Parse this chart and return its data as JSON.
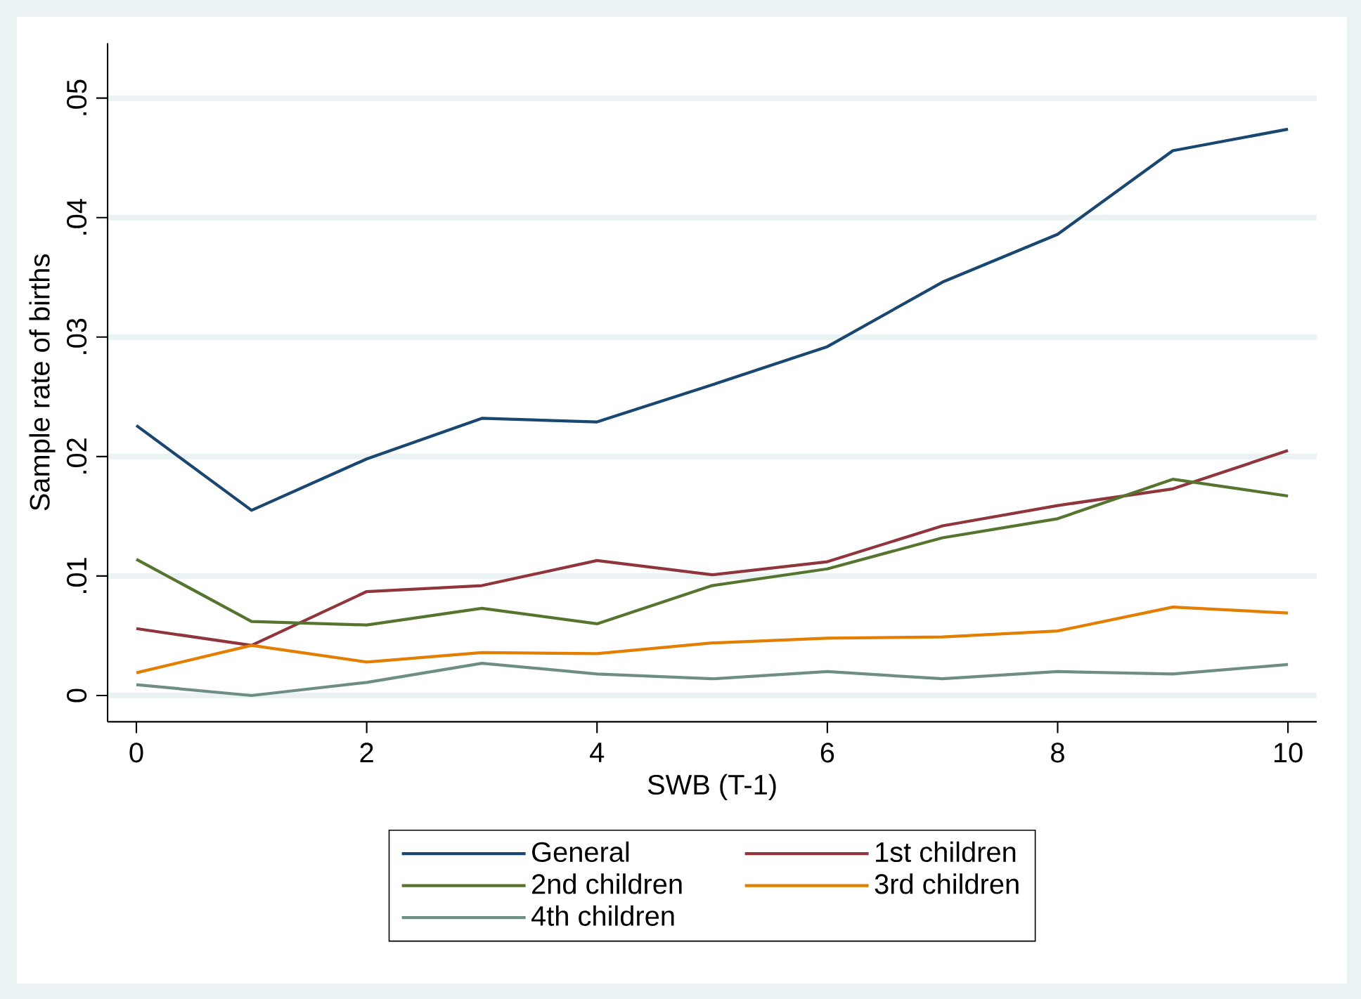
{
  "chart_data": {
    "type": "line",
    "xlabel": "SWB (T-1)",
    "ylabel": "Sample rate of births",
    "x": [
      0,
      1,
      2,
      3,
      4,
      5,
      6,
      7,
      8,
      9,
      10
    ],
    "series": [
      {
        "name": "General",
        "color": "#1a476f",
        "values": [
          0.0226,
          0.0155,
          0.0198,
          0.0232,
          0.0229,
          0.026,
          0.0292,
          0.0346,
          0.0386,
          0.0456,
          0.0474
        ]
      },
      {
        "name": "1st children",
        "color": "#90353b",
        "values": [
          0.0056,
          0.0042,
          0.0087,
          0.0092,
          0.0113,
          0.0101,
          0.0112,
          0.0142,
          0.0159,
          0.0173,
          0.0205
        ]
      },
      {
        "name": "2nd children",
        "color": "#55752f",
        "values": [
          0.0114,
          0.0062,
          0.0059,
          0.0073,
          0.006,
          0.0092,
          0.0106,
          0.0132,
          0.0148,
          0.0181,
          0.0167
        ]
      },
      {
        "name": "3rd children",
        "color": "#e37e00",
        "values": [
          0.0019,
          0.0042,
          0.0028,
          0.0036,
          0.0035,
          0.0044,
          0.0048,
          0.0049,
          0.0054,
          0.0074,
          0.0069
        ]
      },
      {
        "name": "4th children",
        "color": "#6e8e84",
        "values": [
          0.0009,
          0.0,
          0.0011,
          0.0027,
          0.0018,
          0.0014,
          0.002,
          0.0014,
          0.002,
          0.0018,
          0.0026
        ]
      }
    ],
    "xlim": [
      -0.25,
      10.25
    ],
    "ylim": [
      -0.0022,
      0.0546
    ],
    "xticks": [
      0,
      2,
      4,
      6,
      8,
      10
    ],
    "yticks": [
      0,
      {
        "value": 0.01,
        "label": ".01"
      },
      {
        "value": 0.02,
        "label": ".02"
      },
      {
        "value": 0.03,
        "label": ".03"
      },
      {
        "value": 0.04,
        "label": ".04"
      },
      {
        "value": 0.05,
        "label": ".05"
      }
    ],
    "grid": "y",
    "legend": "bottom",
    "marker": "none",
    "line_style": "solid"
  }
}
